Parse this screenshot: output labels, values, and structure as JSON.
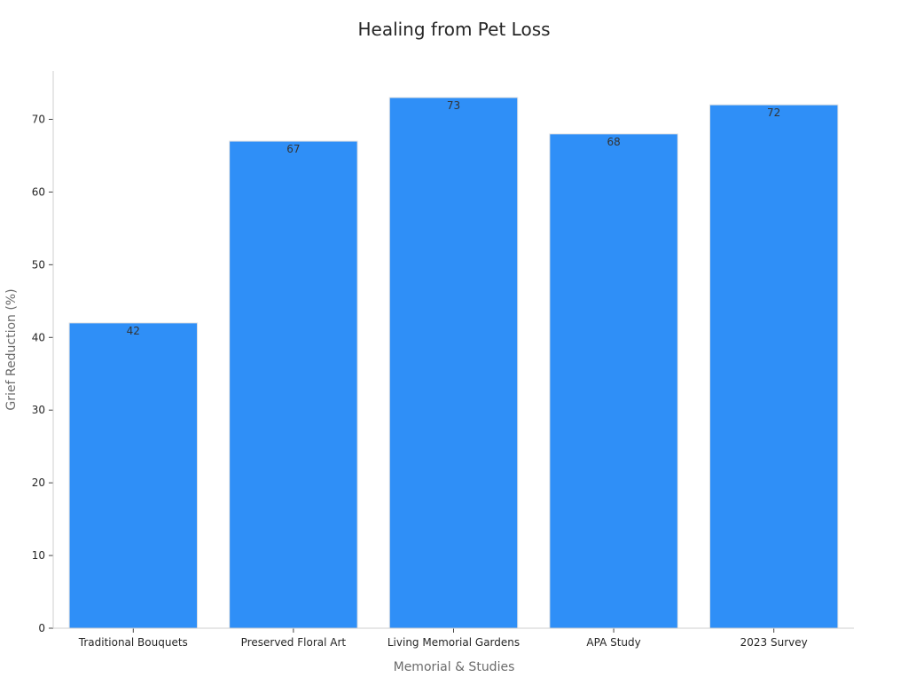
{
  "chart_data": {
    "type": "bar",
    "title": "Healing from Pet Loss",
    "xlabel": "Memorial & Studies",
    "ylabel": "Grief Reduction (%)",
    "categories": [
      "Traditional Bouquets",
      "Preserved Floral Art",
      "Living Memorial Gardens",
      "APA Study",
      "2023 Survey"
    ],
    "values": [
      42,
      67,
      73,
      68,
      72
    ],
    "data_labels": [
      "42",
      "67",
      "73",
      "68",
      "72"
    ],
    "ylim": [
      0,
      76.65
    ],
    "yticks": [
      0,
      10,
      20,
      30,
      40,
      50,
      60,
      70
    ],
    "grid": false,
    "legend": "none",
    "colors": {
      "bar": "#2f8ff7",
      "bar_edge": "#e3e3e3"
    }
  }
}
